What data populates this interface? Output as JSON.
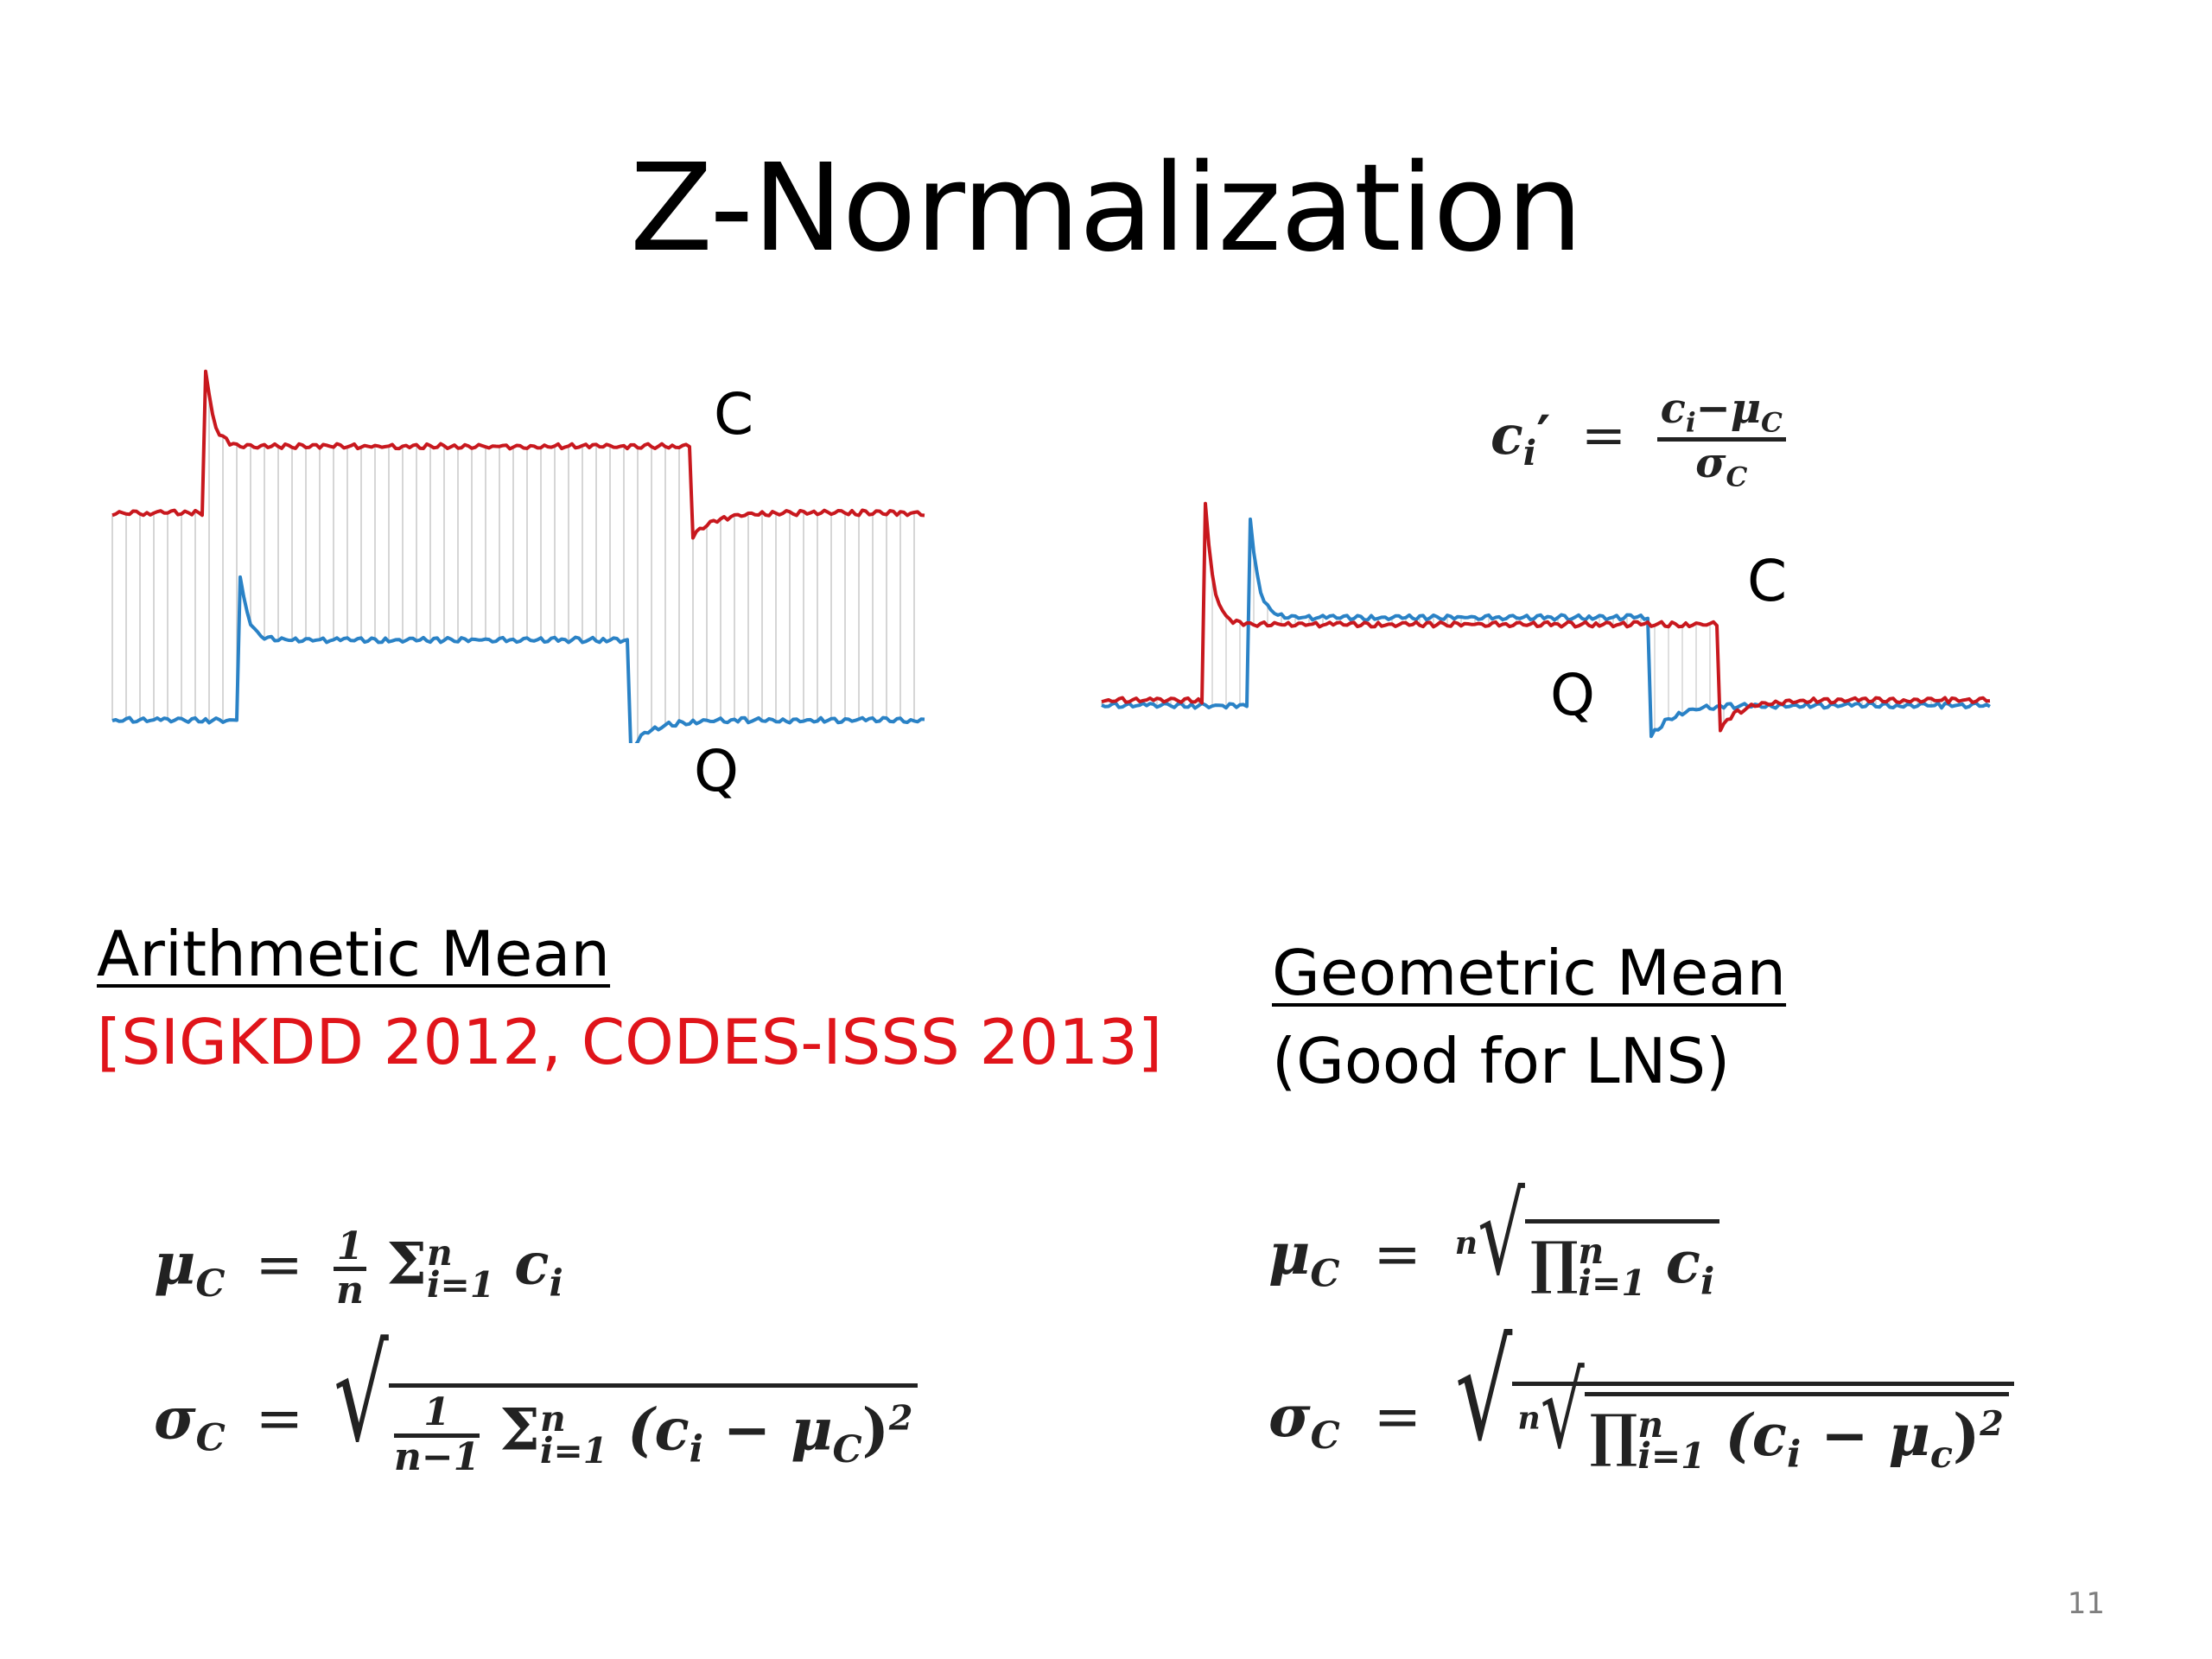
{
  "slide": {
    "title": "Z-Normalization",
    "page_number": "11"
  },
  "left_plot": {
    "label_c": "C",
    "label_q": "Q",
    "colors": {
      "c": "#c8181e",
      "q": "#2a82c6",
      "links": "#c9c9c9"
    }
  },
  "right_plot": {
    "label_c": "C",
    "label_q": "Q",
    "formula": {
      "lhs": "c",
      "lhs_sub": "i",
      "prime": "′",
      "eq": "=",
      "numerator": "c",
      "numerator_sub": "i",
      "minus": "−",
      "mu": "μ",
      "mu_sub": "C",
      "sigma": "σ",
      "sigma_sub": "C"
    }
  },
  "arithmetic": {
    "heading": "Arithmetic Mean",
    "citation": "[SIGKDD 2012, CODES-ISSS 2013]",
    "mean": {
      "mu": "μ",
      "sub": "C",
      "eq": "=",
      "one": "1",
      "n": "n",
      "sum": "Σ",
      "upper": "n",
      "lower": "i=1",
      "term": "c",
      "term_sub": "i"
    },
    "std": {
      "sigma": "σ",
      "sub": "C",
      "eq": "=",
      "one": "1",
      "denom": "n−1",
      "sum": "Σ",
      "upper": "n",
      "lower": "i=1",
      "open": "(c",
      "term_sub": "i",
      "minus": " − μ",
      "mu_sub": "C",
      "close": ")",
      "power": "2"
    }
  },
  "geometric": {
    "heading": "Geometric Mean",
    "note": "(Good for LNS)",
    "mean": {
      "mu": "μ",
      "sub": "C",
      "eq": "=",
      "root_index": "n",
      "prod": "∏",
      "upper": "n",
      "lower": "i=1",
      "term": "c",
      "term_sub": "i"
    },
    "std": {
      "sigma": "σ",
      "sub": "C",
      "eq": "=",
      "root_index": "n",
      "prod": "∏",
      "upper": "n",
      "lower": "i=1",
      "open": "(c",
      "term_sub": "i",
      "minus": " − μ",
      "mu_sub": "c",
      "close": ")",
      "power": "2"
    }
  }
}
